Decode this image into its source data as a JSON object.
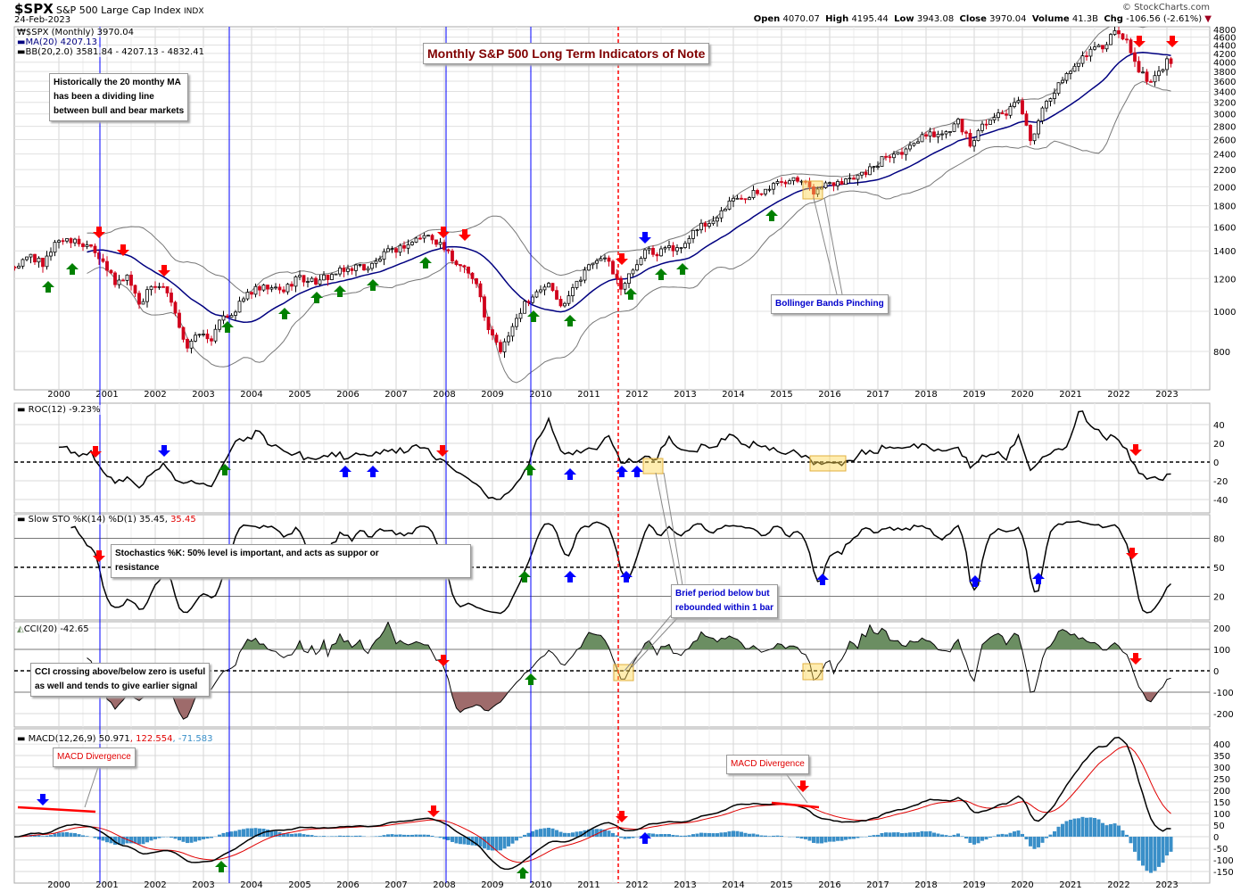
{
  "header": {
    "symbol": "$SPX",
    "name": "S&P 500 Large Cap Index",
    "exchange": "INDX",
    "date": "24-Feb-2023",
    "watermark": "© StockCharts.com",
    "open_label": "Open",
    "open": "4070.07",
    "high_label": "High",
    "high": "4195.44",
    "low_label": "Low",
    "low": "3943.08",
    "close_label": "Close",
    "close": "3970.04",
    "volume_label": "Volume",
    "volume": "41.3B",
    "chg_label": "Chg",
    "chg": "-106.56 (-2.61%)"
  },
  "legends": {
    "price": "$SPX (Monthly) 3970.04",
    "ma": "MA(20) 4207.13",
    "bb": "BB(20,2.0) 3581.84 - 4207.13 - 4832.41",
    "roc": "ROC(12) -9.23%",
    "sto": "Slow STO %K(14) %D(1) 35.45,",
    "sto_d": "35.45",
    "cci": "CCI(20) -42.65",
    "macd": "MACD(12,26,9) 50.971",
    "macd_signal": ", 122.554",
    "macd_hist": ", -71.583"
  },
  "annotations": {
    "title": "Monthly S&P 500 Long Term Indicators of Note",
    "ma_note": [
      "Historically the 20 monthy MA",
      "has been a dividing line",
      "between bull and bear markets"
    ],
    "bb_note": "Bollinger Bands Pinching",
    "sto_note": [
      "Stochastics %K: 50% level is important, and acts as suppor or",
      "resistance"
    ],
    "brief_note": [
      "Brief period below but",
      "rebounded within 1 bar"
    ],
    "cci_note": [
      "CCI crossing above/below zero is useful",
      "as well and tends to give earlier signal"
    ],
    "macd_div_1": "MACD Divergence",
    "macd_div_2": "MACD Divergence"
  },
  "colors": {
    "up": "#000000",
    "down": "#d0021b",
    "ma": "#000080",
    "bb": "#777777",
    "macd_signal": "#e00000",
    "histogram": "#3a8fc8",
    "cci_pos": "#6b8e62",
    "cci_neg": "#9e6b6b",
    "signal_red": "#ff0000",
    "signal_green": "#008000",
    "signal_blue": "#0000ff"
  },
  "chart_data": {
    "type": "candlestick",
    "interval": "monthly",
    "scale": "log",
    "years": [
      "2000",
      "2001",
      "2002",
      "2003",
      "2004",
      "2005",
      "2006",
      "2007",
      "2008",
      "2009",
      "2010",
      "2011",
      "2012",
      "2013",
      "2014",
      "2015",
      "2016",
      "2017",
      "2018",
      "2019",
      "2020",
      "2021",
      "2022",
      "2023"
    ],
    "price_ticks": [
      4800,
      4600,
      4400,
      4200,
      4000,
      3800,
      3600,
      3400,
      3200,
      3000,
      2800,
      2600,
      2400,
      2200,
      2000,
      1800,
      1600,
      1400,
      1200,
      1000,
      800
    ],
    "start_close_1999_01": 1280,
    "quarterly_closes": [
      1286,
      1373,
      1283,
      1469,
      1499,
      1455,
      1437,
      1320,
      1160,
      1224,
      1041,
      1148,
      1147,
      990,
      815,
      880,
      848,
      975,
      996,
      1112,
      1126,
      1141,
      1115,
      1212,
      1181,
      1191,
      1229,
      1248,
      1295,
      1270,
      1336,
      1418,
      1421,
      1503,
      1527,
      1468,
      1323,
      1280,
      1166,
      903,
      798,
      919,
      1057,
      1115,
      1169,
      1031,
      1141,
      1258,
      1326,
      1321,
      1131,
      1258,
      1408,
      1362,
      1441,
      1426,
      1569,
      1606,
      1682,
      1848,
      1872,
      1960,
      1972,
      2059,
      2068,
      2063,
      1920,
      2044,
      2060,
      2099,
      2168,
      2239,
      2363,
      2423,
      2519,
      2674,
      2641,
      2718,
      2914,
      2507,
      2834,
      2942,
      2977,
      3231,
      2585,
      3100,
      3363,
      3756,
      3973,
      4298,
      4308,
      4766,
      4530,
      3785,
      3586,
      3840
    ],
    "closes_2023": {
      "Jan": 4077,
      "Feb": 3970
    },
    "roc_ticks": [
      40,
      20,
      0,
      -20,
      -40
    ],
    "sto_ticks": [
      80,
      50,
      20
    ],
    "cci_ticks": [
      200,
      100,
      0,
      -100,
      -200
    ],
    "macd_ticks": [
      400,
      350,
      300,
      250,
      200,
      150,
      100,
      50,
      0,
      -50,
      -100,
      -150
    ],
    "grid": true
  }
}
